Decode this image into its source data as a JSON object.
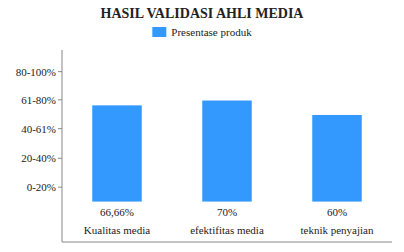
{
  "chart_data": {
    "type": "bar",
    "title": "HASIL VALIDASI AHLI MEDIA",
    "categories": [
      "Kualitas media",
      "efektifitas media",
      "teknik penyajian"
    ],
    "series": [
      {
        "name": "Presentase produk",
        "color": "#3399FF",
        "values": [
          66.66,
          70.0,
          60.0
        ],
        "value_labels": [
          "66,66%",
          "70%",
          "60%"
        ]
      }
    ],
    "data_labels": true,
    "ylim": [
      -28,
      105
    ],
    "yticks": [
      {
        "value": 10,
        "label": "0-20%"
      },
      {
        "value": 30,
        "label": "20-40%"
      },
      {
        "value": 50.5,
        "label": "40-61%"
      },
      {
        "value": 70.5,
        "label": "61-80%"
      },
      {
        "value": 90,
        "label": "80-100%"
      }
    ],
    "grid": false,
    "legend": "top"
  }
}
